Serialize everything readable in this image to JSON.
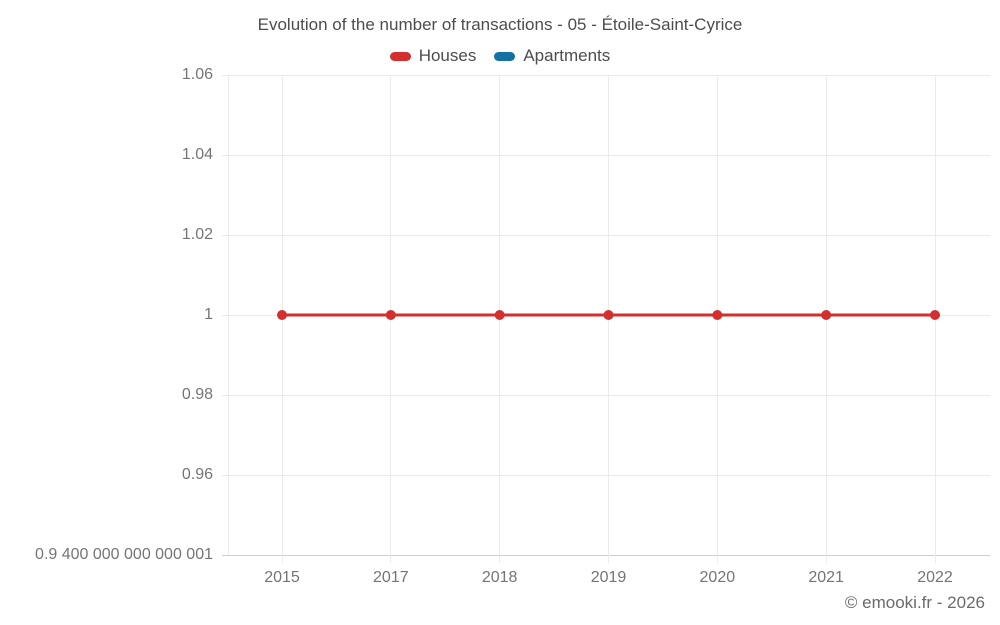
{
  "footer": {
    "text": "© emooki.fr - 2026"
  },
  "colors": {
    "grid": "#ebebeb",
    "axis": "#cfcfcf",
    "tick_text": "#757575",
    "title_text": "#4d4d4d"
  },
  "chart_data": {
    "type": "line",
    "title": "Evolution of the number of transactions - 05 - Étoile-Saint-Cyrice",
    "categories": [
      "2015",
      "2017",
      "2018",
      "2019",
      "2020",
      "2021",
      "2022"
    ],
    "series": [
      {
        "name": "Houses",
        "color": "#d32f2f",
        "visible": true,
        "values": [
          1,
          1,
          1,
          1,
          1,
          1,
          1
        ]
      },
      {
        "name": "Apartments",
        "color": "#1371a3",
        "visible": false,
        "values": []
      }
    ],
    "xlabel": "",
    "ylabel": "",
    "ylim": [
      0.94,
      1.06
    ],
    "y_ticks": [
      {
        "value": 1.06,
        "label": "1.06"
      },
      {
        "value": 1.04,
        "label": "1.04"
      },
      {
        "value": 1.02,
        "label": "1.02"
      },
      {
        "value": 1.0,
        "label": "1"
      },
      {
        "value": 0.98,
        "label": "0.98"
      },
      {
        "value": 0.96,
        "label": "0.96"
      },
      {
        "value": 0.94,
        "label": "0.9 400 000 000 000 001"
      }
    ],
    "grid": true,
    "legend_position": "top"
  }
}
